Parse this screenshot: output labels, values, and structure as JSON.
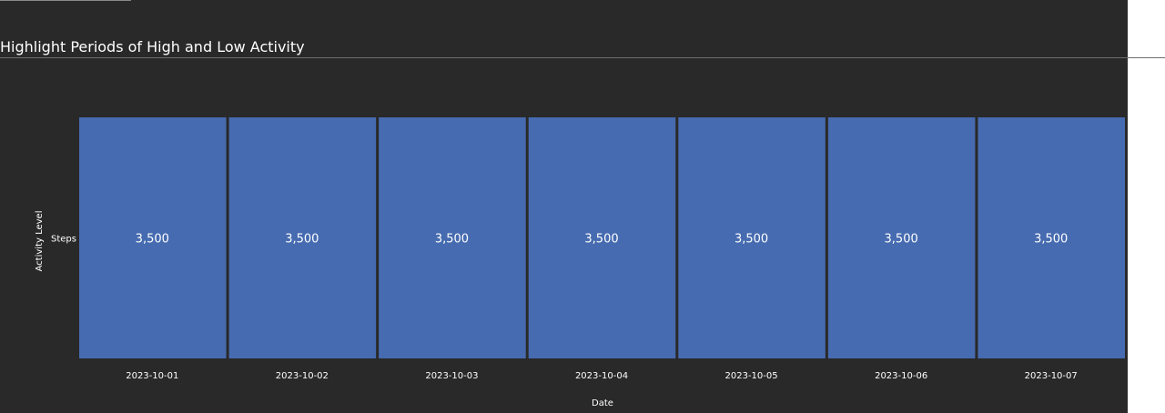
{
  "title": "Highlight Periods of High and Low Activity",
  "chart_data": {
    "type": "heatmap",
    "title": "Highlight Periods of High and Low Activity",
    "xlabel": "Date",
    "ylabel": "Activity Level",
    "x": [
      "2023-10-01",
      "2023-10-02",
      "2023-10-03",
      "2023-10-04",
      "2023-10-05",
      "2023-10-06",
      "2023-10-07"
    ],
    "y": [
      "Steps"
    ],
    "values": [
      [
        3500,
        3500,
        3500,
        3500,
        3500,
        3500,
        3500
      ]
    ],
    "cell_labels": [
      "3,500",
      "3,500",
      "3,500",
      "3,500",
      "3,500",
      "3,500",
      "3,500"
    ],
    "cell_color": "#466bb0"
  },
  "colors": {
    "background": "#292929",
    "text": "#ffffff",
    "cell": "#466bb0"
  }
}
